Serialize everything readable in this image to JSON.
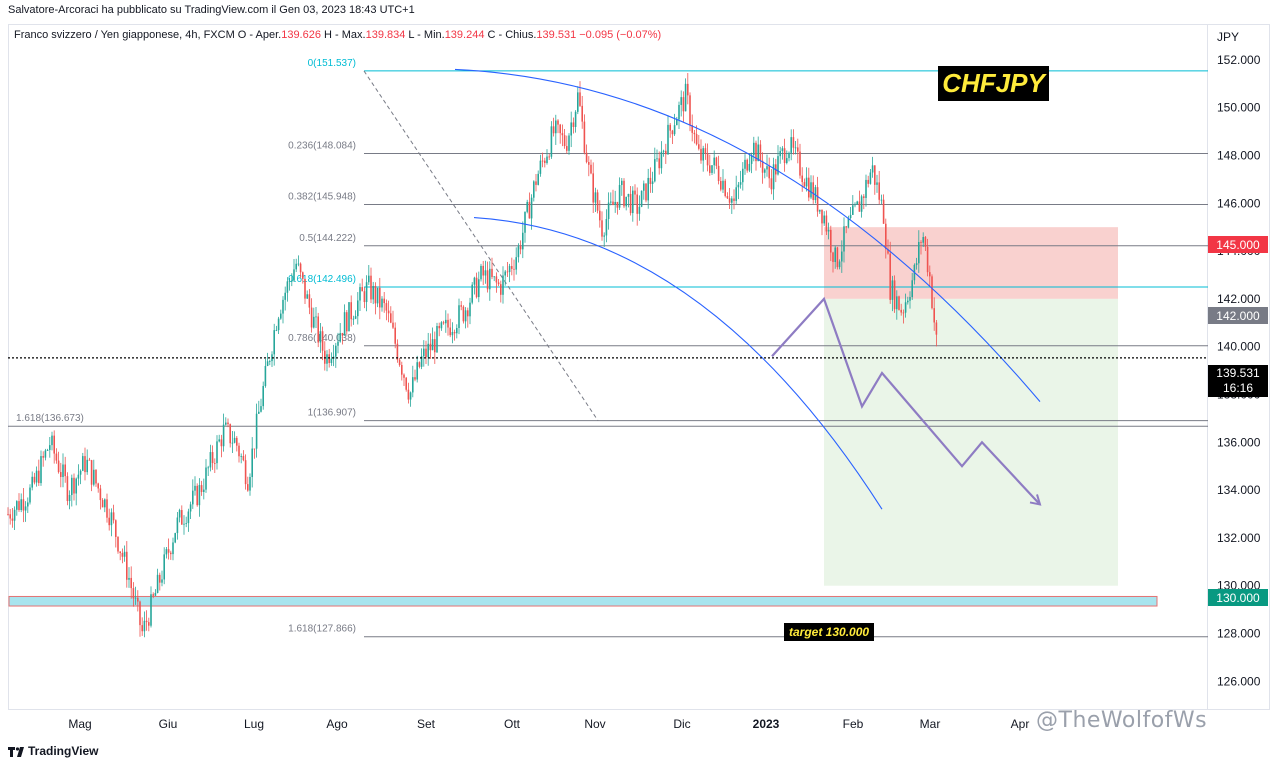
{
  "header": {
    "caption": "Salvatore-Arcoraci ha pubblicato su TradingView.com il Gen 03, 2023 18:43 UTC+1",
    "legend_prefix": "Franco svizzero / Yen giapponese, 4h, FXCM  O - Aper.",
    "open": "139.626",
    "high_label": " H - Max.",
    "high": "139.834",
    "low_label": " L - Min.",
    "low": "139.244",
    "close_label": " C - Chius.",
    "close": "139.531",
    "change": " −0.095 (−0.07%)"
  },
  "symbol_label": "CHFJPY",
  "target_label": "target 130.000",
  "branding": {
    "logo_text": "TradingView",
    "watermark": "@TheWolfofWs"
  },
  "colors": {
    "candle_up": "#26a69a",
    "candle_down": "#ef5350",
    "fib_line": "#787b86",
    "fib_accent": "#00bcd4",
    "arc": "#2962ff",
    "projection": "#8e7cc3",
    "stop_zone": "#f8c9c7",
    "target_zone": "#e8f4e6",
    "support_band": "#a8e4ee"
  },
  "price_tags": {
    "stop": "145.000",
    "entry": "142.000",
    "current": "139.531",
    "countdown": "16:16",
    "target": "130.000"
  },
  "chart_data": {
    "type": "candlestick",
    "instrument": "Franco svizzero / Yen giapponese",
    "timeframe": "4h",
    "y_axis_unit": "JPY",
    "y_range": [
      124.8,
      153.5
    ],
    "y_ticks": [
      126.0,
      128.0,
      130.0,
      132.0,
      134.0,
      136.0,
      138.0,
      140.0,
      142.0,
      144.0,
      146.0,
      148.0,
      150.0,
      152.0
    ],
    "x_labels": [
      "Mag",
      "Giu",
      "Lug",
      "Ago",
      "Set",
      "Ott",
      "Nov",
      "Dic",
      "2023",
      "Feb",
      "Mar",
      "Apr"
    ],
    "price_path": [
      [
        0.0,
        133.0
      ],
      [
        0.02,
        134.0
      ],
      [
        0.035,
        136.0
      ],
      [
        0.05,
        134.0
      ],
      [
        0.065,
        135.2
      ],
      [
        0.085,
        133.0
      ],
      [
        0.1,
        130.5
      ],
      [
        0.112,
        128.0
      ],
      [
        0.125,
        130.0
      ],
      [
        0.14,
        132.5
      ],
      [
        0.16,
        134.0
      ],
      [
        0.18,
        136.5
      ],
      [
        0.19,
        136.0
      ],
      [
        0.2,
        134.5
      ],
      [
        0.21,
        137.5
      ],
      [
        0.225,
        141.5
      ],
      [
        0.24,
        143.5
      ],
      [
        0.255,
        141.0
      ],
      [
        0.265,
        139.5
      ],
      [
        0.28,
        141.0
      ],
      [
        0.3,
        142.5
      ],
      [
        0.315,
        141.5
      ],
      [
        0.335,
        138.0
      ],
      [
        0.345,
        139.5
      ],
      [
        0.36,
        140.5
      ],
      [
        0.38,
        141.5
      ],
      [
        0.395,
        143.0
      ],
      [
        0.41,
        142.5
      ],
      [
        0.425,
        144.0
      ],
      [
        0.44,
        147.0
      ],
      [
        0.455,
        149.0
      ],
      [
        0.465,
        148.5
      ],
      [
        0.475,
        150.5
      ],
      [
        0.485,
        147.0
      ],
      [
        0.495,
        145.0
      ],
      [
        0.51,
        146.5
      ],
      [
        0.525,
        145.8
      ],
      [
        0.54,
        147.5
      ],
      [
        0.555,
        149.5
      ],
      [
        0.565,
        150.5
      ],
      [
        0.575,
        148.0
      ],
      [
        0.59,
        147.5
      ],
      [
        0.605,
        146.0
      ],
      [
        0.62,
        148.5
      ],
      [
        0.635,
        147.0
      ],
      [
        0.65,
        148.5
      ],
      [
        0.665,
        147.0
      ],
      [
        0.68,
        145.5
      ],
      [
        0.69,
        143.5
      ],
      [
        0.7,
        145.0
      ],
      [
        0.71,
        146.0
      ],
      [
        0.72,
        147.5
      ],
      [
        0.73,
        145.5
      ],
      [
        0.735,
        142.5
      ],
      [
        0.745,
        141.5
      ],
      [
        0.755,
        143.0
      ],
      [
        0.762,
        144.8
      ],
      [
        0.768,
        143.0
      ],
      [
        0.775,
        139.531
      ]
    ],
    "fibonacci": [
      {
        "label": "0(151.537)",
        "value": 151.537
      },
      {
        "label": "0.236(148.084)",
        "value": 148.084
      },
      {
        "label": "0.382(145.948)",
        "value": 145.948
      },
      {
        "label": "0.5(144.222)",
        "value": 144.222
      },
      {
        "label": "0.618(142.496)",
        "value": 142.496
      },
      {
        "label": "0.786(140.038)",
        "value": 140.038
      },
      {
        "label": "1(136.907)",
        "value": 136.907
      },
      {
        "label": "1.618(127.866)",
        "value": 127.866
      },
      {
        "label": "1.618(136.673)",
        "value": 136.673
      }
    ],
    "trade_setup": {
      "stop": 145.0,
      "entry": 142.0,
      "target": 130.0
    },
    "support_zone": [
      129.15,
      129.55
    ],
    "projection_path": [
      139.6,
      142.0,
      137.5,
      138.9,
      135.0,
      136.0,
      133.4
    ]
  }
}
